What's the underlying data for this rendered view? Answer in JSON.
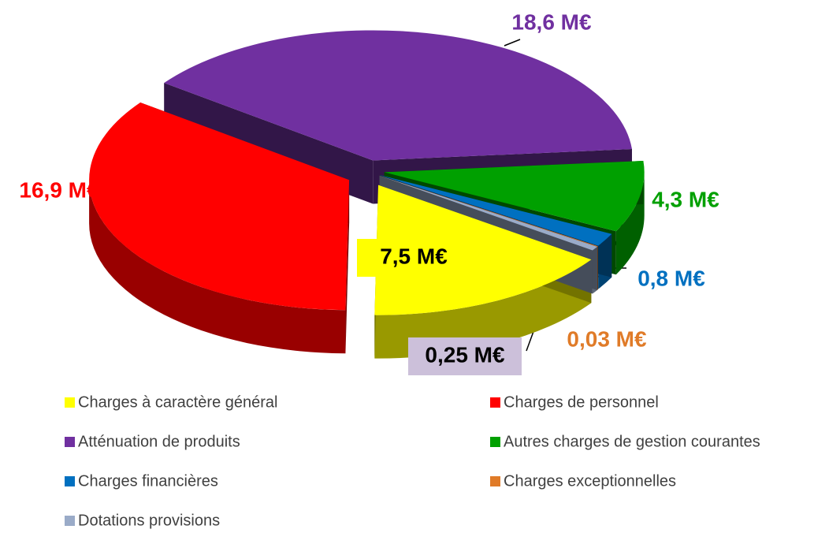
{
  "chart_data": {
    "type": "pie",
    "categories": [
      "Charges à caractère général",
      "Charges de personnel",
      "Atténuation de produits",
      "Autres charges de gestion courantes",
      "Charges financières",
      "Charges exceptionnelles",
      "Dotations provisions"
    ],
    "values": [
      7.5,
      16.9,
      18.6,
      4.3,
      0.8,
      0.03,
      0.25
    ],
    "value_labels": [
      "7,5 M€",
      "16,9 M€",
      "18,6 M€",
      "4,3 M€",
      "0,8 M€",
      "0,03 M€",
      "0,25 M€"
    ],
    "colors": [
      "#ffff00",
      "#ff0000",
      "#7030a0",
      "#00a000",
      "#0070c0",
      "#e07b28",
      "#9aabc8"
    ],
    "legend": "bottom"
  }
}
